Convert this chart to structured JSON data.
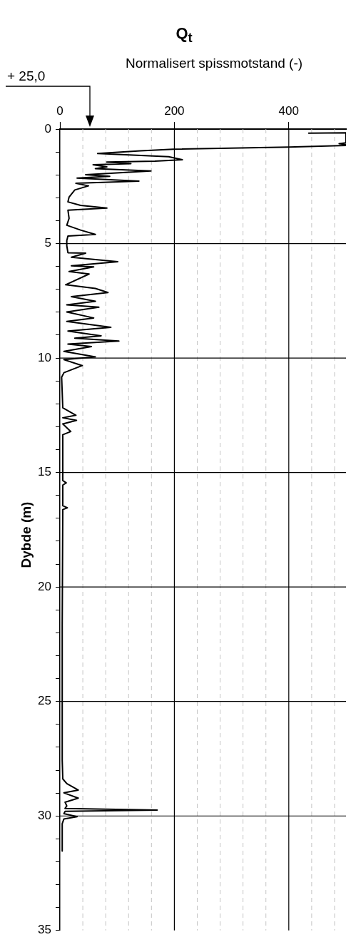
{
  "chart_data": {
    "type": "line",
    "title": "Q$_{t}$",
    "xlabel": "Normalisert spissmotstand (-)",
    "ylabel": "Dybde (m)",
    "annotations": [
      "+ 25,0"
    ],
    "series": [
      {
        "color": "#000000",
        "x": [
          434,
          500,
          500,
          488,
          500,
          500,
          400,
          198,
          141,
          66,
          190,
          214,
          166,
          82,
          124,
          58,
          82,
          62,
          159,
          45,
          87,
          30,
          138,
          28,
          50,
          26,
          16,
          14,
          36,
          82,
          14,
          16,
          12,
          36,
          62,
          14,
          12,
          12,
          14,
          45,
          20,
          101,
          20,
          59,
          16,
          51,
          10,
          62,
          84,
          20,
          62,
          12,
          68,
          12,
          59,
          12,
          89,
          14,
          72,
          26,
          103,
          14,
          55,
          7,
          62,
          7,
          39,
          7,
          3,
          5,
          28,
          5,
          29,
          5,
          19,
          5,
          5,
          11,
          5,
          5,
          13,
          5,
          4,
          4,
          5,
          12,
          32,
          7,
          32,
          9,
          12,
          9,
          170,
          9,
          7,
          30,
          7,
          4,
          4
        ],
        "values": [
          0.18,
          0.16,
          0.6,
          0.64,
          0.68,
          0.72,
          0.79,
          0.88,
          0.95,
          1.07,
          1.21,
          1.34,
          1.4,
          1.44,
          1.51,
          1.56,
          1.65,
          1.73,
          1.83,
          1.99,
          2.06,
          2.14,
          2.27,
          2.37,
          2.48,
          2.66,
          2.97,
          3.18,
          3.33,
          3.45,
          3.54,
          3.9,
          4.2,
          4.41,
          4.6,
          4.67,
          4.87,
          5.1,
          5.4,
          5.42,
          5.6,
          5.79,
          5.97,
          6.02,
          6.22,
          6.33,
          6.8,
          6.96,
          7.14,
          7.32,
          7.52,
          7.68,
          7.78,
          7.99,
          8.25,
          8.4,
          8.66,
          8.82,
          9.03,
          9.13,
          9.26,
          9.39,
          9.5,
          9.71,
          9.95,
          10.07,
          10.33,
          10.64,
          10.84,
          12.17,
          12.5,
          12.61,
          12.72,
          12.88,
          13.21,
          13.35,
          15.35,
          15.45,
          15.55,
          16.45,
          16.54,
          16.62,
          21.7,
          27.56,
          28.38,
          28.59,
          28.87,
          28.99,
          29.22,
          29.4,
          29.56,
          29.67,
          29.74,
          29.8,
          29.9,
          30.03,
          30.13,
          30.34,
          31.53
        ]
      }
    ],
    "xlim": [
      0,
      500
    ],
    "xticks": [
      0,
      {
        "value": 40,
        "label": null
      },
      {
        "value": 80,
        "label": null
      },
      {
        "value": 120,
        "label": null
      },
      {
        "value": 160,
        "label": null
      },
      200,
      {
        "value": 240,
        "label": null
      },
      {
        "value": 280,
        "label": null
      },
      {
        "value": 320,
        "label": null
      },
      {
        "value": 360,
        "label": null
      },
      400,
      {
        "value": 440,
        "label": null
      },
      {
        "value": 480,
        "label": null
      }
    ],
    "ylim": [
      35,
      0
    ],
    "yticks": [
      0,
      {
        "value": 1,
        "label": null
      },
      {
        "value": 2,
        "label": null
      },
      {
        "value": 3,
        "label": null
      },
      {
        "value": 4,
        "label": null
      },
      5,
      {
        "value": 6,
        "label": null
      },
      {
        "value": 7,
        "label": null
      },
      {
        "value": 8,
        "label": null
      },
      {
        "value": 9,
        "label": null
      },
      10,
      {
        "value": 11,
        "label": null
      },
      {
        "value": 12,
        "label": null
      },
      {
        "value": 13,
        "label": null
      },
      {
        "value": 14,
        "label": null
      },
      15,
      {
        "value": 16,
        "label": null
      },
      {
        "value": 17,
        "label": null
      },
      {
        "value": 18,
        "label": null
      },
      {
        "value": 19,
        "label": null
      },
      20,
      {
        "value": 21,
        "label": null
      },
      {
        "value": 22,
        "label": null
      },
      {
        "value": 23,
        "label": null
      },
      {
        "value": 24,
        "label": null
      },
      25,
      {
        "value": 26,
        "label": null
      },
      {
        "value": 27,
        "label": null
      },
      {
        "value": 28,
        "label": null
      },
      {
        "value": 29,
        "label": null
      },
      30,
      {
        "value": 31,
        "label": null
      },
      {
        "value": 32,
        "label": null
      },
      {
        "value": 33,
        "label": null
      },
      {
        "value": 34,
        "label": null
      },
      35
    ],
    "grid": true,
    "marker": "none",
    "line_style": "solid"
  }
}
